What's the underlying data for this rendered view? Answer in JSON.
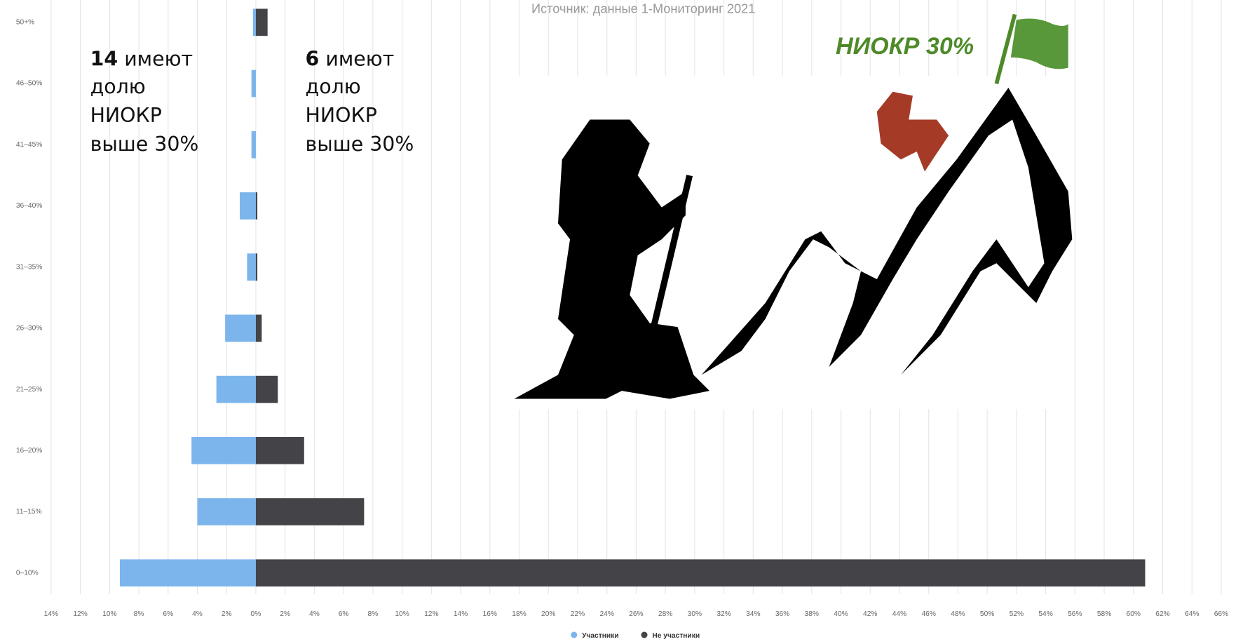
{
  "chart_data": {
    "type": "butterfly-bar",
    "subtitle": "Источник: данные 1-Мониторинг 2021",
    "categories": [
      "50+%",
      "46–50%",
      "41–45%",
      "36–40%",
      "31–35%",
      "26–30%",
      "21–25%",
      "16–20%",
      "11–15%",
      "0–10%"
    ],
    "series": [
      {
        "name": "Участники",
        "color": "#7cb5ec",
        "side": "left",
        "values": [
          0.2,
          0.3,
          0.3,
          1.1,
          0.6,
          2.1,
          2.7,
          4.4,
          4.0,
          9.3
        ]
      },
      {
        "name": "Не участники",
        "color": "#434348",
        "side": "right",
        "values": [
          0.8,
          0,
          0,
          0.1,
          0.1,
          0.4,
          1.5,
          3.3,
          7.4,
          60.8
        ]
      }
    ],
    "xlim": [
      -14,
      66
    ],
    "xticks": [
      {
        "value": -14,
        "label": "14%"
      },
      {
        "value": -12,
        "label": "12%"
      },
      {
        "value": -10,
        "label": "10%"
      },
      {
        "value": -8,
        "label": "8%"
      },
      {
        "value": -6,
        "label": "6%"
      },
      {
        "value": -4,
        "label": "4%"
      },
      {
        "value": -2,
        "label": "2%"
      },
      {
        "value": 0,
        "label": "0%"
      },
      {
        "value": 2,
        "label": "2%"
      },
      {
        "value": 4,
        "label": "4%"
      },
      {
        "value": 6,
        "label": "6%"
      },
      {
        "value": 8,
        "label": "8%"
      },
      {
        "value": 10,
        "label": "10%"
      },
      {
        "value": 12,
        "label": "12%"
      },
      {
        "value": 14,
        "label": "14%"
      },
      {
        "value": 16,
        "label": "16%"
      },
      {
        "value": 18,
        "label": "18%"
      },
      {
        "value": 20,
        "label": "20%"
      },
      {
        "value": 22,
        "label": "22%"
      },
      {
        "value": 24,
        "label": "24%"
      },
      {
        "value": 26,
        "label": "26%"
      },
      {
        "value": 28,
        "label": "28%"
      },
      {
        "value": 30,
        "label": "30%"
      },
      {
        "value": 32,
        "label": "32%"
      },
      {
        "value": 34,
        "label": "34%"
      },
      {
        "value": 36,
        "label": "36%"
      },
      {
        "value": 38,
        "label": "38%"
      },
      {
        "value": 40,
        "label": "40%"
      },
      {
        "value": 42,
        "label": "42%"
      },
      {
        "value": 44,
        "label": "44%"
      },
      {
        "value": 46,
        "label": "46%"
      },
      {
        "value": 48,
        "label": "48%"
      },
      {
        "value": 50,
        "label": "50%"
      },
      {
        "value": 52,
        "label": "52%"
      },
      {
        "value": 54,
        "label": "54%"
      },
      {
        "value": 56,
        "label": "56%"
      },
      {
        "value": 58,
        "label": "58%"
      },
      {
        "value": 60,
        "label": "60%"
      },
      {
        "value": 62,
        "label": "62%"
      },
      {
        "value": 64,
        "label": "64%"
      },
      {
        "value": 66,
        "label": "66%"
      }
    ],
    "grid": true,
    "legend": "bottom",
    "annotations": {
      "left_note": {
        "count": "14",
        "lines": [
          "имеют",
          "долю",
          "НИОКР",
          "выше 30%"
        ]
      },
      "right_note": {
        "count": "6",
        "lines": [
          "имеют",
          "долю",
          "НИОКР",
          "выше 30%"
        ]
      },
      "goal": "НИОКР 30%"
    }
  }
}
